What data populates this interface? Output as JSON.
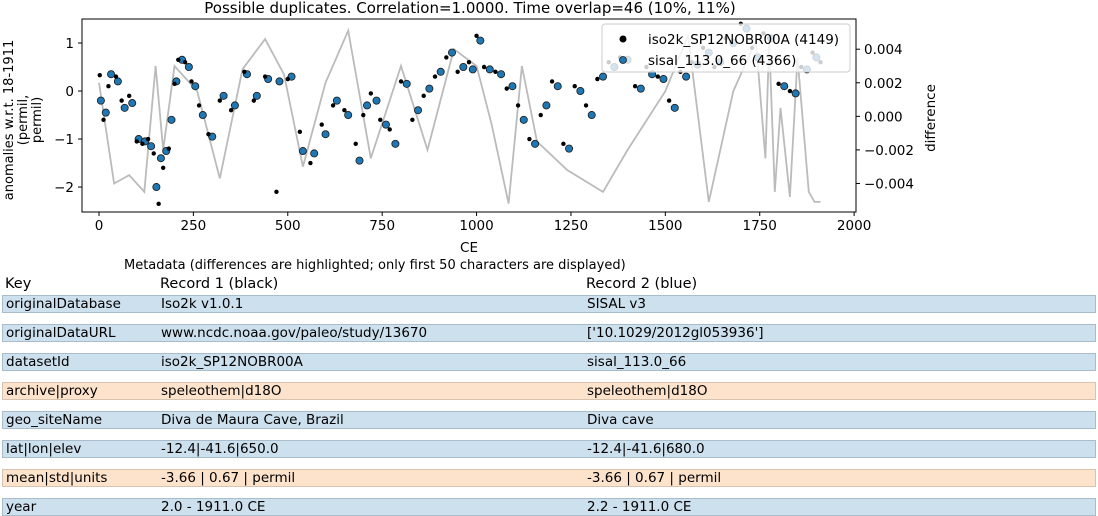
{
  "chart_data": {
    "type": "scatter",
    "title": "Possible duplicates. Correlation=1.0000. Time overlap=46 (10%, 11%)",
    "xlabel": "CE",
    "ylabel": "anomalies w.r.t. 18-1911 (permil, permil)",
    "y2label": "difference",
    "xlim": [
      -45,
      2005
    ],
    "ylim": [
      -2.52,
      1.5
    ],
    "y2lim": [
      -0.0057,
      0.0058
    ],
    "x_ticks": [
      0,
      250,
      500,
      750,
      1000,
      1250,
      1500,
      1750,
      2000
    ],
    "y_ticks": [
      1,
      0,
      -1,
      -2
    ],
    "y2_ticks": [
      0.004,
      0.002,
      0.0,
      -0.002,
      -0.004
    ],
    "y2_tick_labels": [
      "0.004",
      "0.002",
      "0.000",
      "−0.002",
      "−0.004"
    ],
    "legend_position": "top-right",
    "grid": false,
    "series": [
      {
        "name": "iso2k_SP12NOBR00A (4149)",
        "color": "#000000",
        "role": "record1",
        "x": [
          2,
          12,
          25,
          45,
          60,
          80,
          100,
          115,
          130,
          145,
          158,
          170,
          185,
          200,
          210,
          228,
          245,
          265,
          290,
          320,
          350,
          385,
          410,
          440,
          470,
          500,
          532,
          560,
          590,
          620,
          650,
          680,
          700,
          720,
          745,
          770,
          800,
          830,
          860,
          890,
          920,
          950,
          980,
          1000,
          1020,
          1050,
          1080,
          1110,
          1140,
          1170,
          1200,
          1230,
          1260,
          1290,
          1320,
          1350,
          1380,
          1420,
          1450,
          1480,
          1510,
          1540,
          1570,
          1600,
          1630,
          1660,
          1700,
          1730,
          1760,
          1800,
          1830,
          1860,
          1890,
          1911
        ],
        "y": [
          0.33,
          -0.6,
          0.1,
          0.3,
          -0.2,
          -0.1,
          -1.05,
          -1.1,
          -1.0,
          -1.3,
          -2.35,
          -1.6,
          -1.2,
          0.15,
          0.65,
          0.6,
          0.2,
          -0.3,
          -0.9,
          -0.2,
          -0.4,
          0.4,
          -0.2,
          0.3,
          -2.1,
          0.25,
          -0.85,
          -1.5,
          -0.7,
          -0.3,
          -0.4,
          -1.1,
          -0.5,
          -0.05,
          -0.6,
          -0.8,
          0.2,
          -0.6,
          -0.1,
          0.3,
          0.7,
          0.4,
          0.6,
          1.15,
          0.5,
          0.4,
          0.05,
          -0.3,
          -1.0,
          -0.5,
          0.2,
          -1.1,
          0.1,
          -0.3,
          0.25,
          0.6,
          0.7,
          0.1,
          0.5,
          0.3,
          -0.2,
          0.4,
          0.6,
          0.9,
          0.5,
          1.1,
          1.4,
          0.9,
          1.2,
          0.15,
          0.0,
          0.5,
          0.8,
          0.6
        ]
      },
      {
        "name": "sisal_113.0_66 (4366)",
        "color": "#1f77b4",
        "role": "record2",
        "x": [
          5,
          18,
          32,
          50,
          68,
          88,
          105,
          122,
          138,
          152,
          164,
          178,
          192,
          205,
          220,
          238,
          255,
          275,
          300,
          330,
          360,
          392,
          418,
          448,
          478,
          510,
          540,
          570,
          600,
          630,
          660,
          690,
          710,
          735,
          760,
          785,
          815,
          845,
          875,
          905,
          935,
          965,
          990,
          1010,
          1035,
          1065,
          1095,
          1125,
          1155,
          1185,
          1215,
          1245,
          1275,
          1305,
          1335,
          1365,
          1400,
          1435,
          1465,
          1495,
          1525,
          1555,
          1585,
          1615,
          1645,
          1680,
          1715,
          1745,
          1780,
          1815,
          1845,
          1875,
          1900
        ],
        "y": [
          -0.2,
          -0.45,
          0.35,
          0.2,
          -0.35,
          -0.25,
          -1.0,
          -1.05,
          -1.15,
          -2.0,
          -1.4,
          -1.25,
          -0.6,
          0.2,
          0.65,
          0.5,
          0.1,
          -0.5,
          -0.95,
          -0.1,
          -0.3,
          0.35,
          -0.1,
          0.25,
          0.2,
          0.3,
          -1.25,
          -1.3,
          -0.9,
          -0.2,
          -0.5,
          -1.45,
          -0.3,
          -0.2,
          -0.7,
          -1.1,
          0.15,
          -0.4,
          0.05,
          0.4,
          0.8,
          0.5,
          0.45,
          1.05,
          0.45,
          0.35,
          0.1,
          -0.6,
          -1.1,
          -0.3,
          0.1,
          -1.2,
          0.0,
          -0.5,
          0.3,
          0.5,
          0.65,
          0.05,
          0.35,
          0.25,
          -0.35,
          0.3,
          0.55,
          0.8,
          0.6,
          1.0,
          1.3,
          0.7,
          1.1,
          0.1,
          -0.05,
          0.45,
          0.7
        ]
      },
      {
        "name": "difference",
        "color": "#bbbbbb",
        "role": "difference",
        "axis": "right",
        "x": [
          0,
          40,
          80,
          120,
          150,
          170,
          200,
          260,
          320,
          380,
          440,
          490,
          540,
          600,
          660,
          720,
          800,
          870,
          940,
          1000,
          1040,
          1085,
          1120,
          1160,
          1240,
          1335,
          1400,
          1500,
          1560,
          1615,
          1680,
          1740,
          1765,
          1775,
          1790,
          1805,
          1830,
          1850,
          1880,
          1895,
          1911
        ],
        "y": [
          0.002,
          -0.004,
          -0.0035,
          -0.0045,
          0.003,
          -0.002,
          0.003,
          0.0015,
          -0.0037,
          0.0028,
          0.0046,
          0.0025,
          -0.003,
          0.002,
          0.0051,
          -0.0025,
          0.003,
          -0.002,
          0.004,
          0.003,
          -0.0005,
          -0.0052,
          0.003,
          -0.0015,
          -0.0032,
          -0.0045,
          -0.002,
          0.0015,
          0.0048,
          -0.0051,
          0.0015,
          0.0045,
          -0.0025,
          0.0045,
          -0.0045,
          0.0005,
          -0.0048,
          0.0035,
          -0.0045,
          -0.0051,
          -0.0051
        ]
      }
    ]
  },
  "metadata": {
    "caption": "Metadata (differences are highlighted; only first 50 characters are displayed)",
    "headers": [
      "Key",
      "Record 1 (black)",
      "Record 2 (blue)"
    ],
    "rows": [
      {
        "key": "originalDatabase",
        "r1": "Iso2k v1.0.1",
        "r2": "SISAL v3",
        "highlight": false
      },
      {
        "key": "originalDataURL",
        "r1": "www.ncdc.noaa.gov/paleo/study/13670",
        "r2": "['10.1029/2012gl053936']",
        "highlight": false
      },
      {
        "key": "datasetId",
        "r1": "iso2k_SP12NOBR00A",
        "r2": "sisal_113.0_66",
        "highlight": false
      },
      {
        "key": "archive|proxy",
        "r1": "speleothem|d18O",
        "r2": "speleothem|d18O",
        "highlight": true
      },
      {
        "key": "geo_siteName",
        "r1": "Diva de Maura Cave, Brazil",
        "r2": "Diva cave",
        "highlight": false
      },
      {
        "key": "lat|lon|elev",
        "r1": "-12.4|-41.6|650.0",
        "r2": "-12.4|-41.6|680.0",
        "highlight": false
      },
      {
        "key": "mean|std|units",
        "r1": "-3.66 | 0.67 | permil",
        "r2": "-3.66 | 0.67 | permil",
        "highlight": true
      },
      {
        "key": "year",
        "r1": "2.0 - 1911.0 CE",
        "r2": "2.2 - 1911.0 CE",
        "highlight": false
      }
    ]
  }
}
